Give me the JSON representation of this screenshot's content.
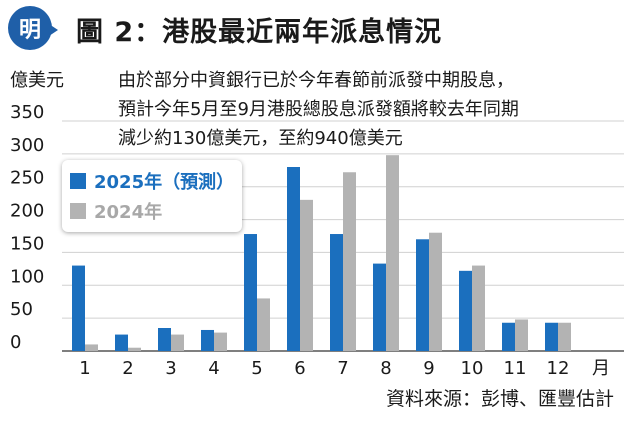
{
  "header": {
    "logo_char": "明",
    "title": "圖 2：港股最近兩年派息情況"
  },
  "ylabel": "億美元",
  "note": [
    "由於部分中資銀行已於今年春節前派發中期股息，",
    "預計今年5月至9月港股總股息派發額將較去年同期",
    "減少約130億美元，至約940億美元"
  ],
  "source": "資料來源：彭博、匯豐估計",
  "colors": {
    "brand": "#1f5fa8",
    "s2025": "#1b6fbe",
    "s2024": "#b3b3b3"
  },
  "chart_data": {
    "type": "bar",
    "categories": [
      "1",
      "2",
      "3",
      "4",
      "5",
      "6",
      "7",
      "8",
      "9",
      "10",
      "11",
      "12"
    ],
    "x_unit": "月",
    "ylim": [
      0,
      350
    ],
    "yticks": [
      0,
      50,
      100,
      150,
      200,
      250,
      300,
      350
    ],
    "ylabel": "億美元",
    "series": [
      {
        "name": "2025年（預測）",
        "values": [
          130,
          25,
          35,
          32,
          178,
          280,
          178,
          133,
          170,
          122,
          43,
          43
        ]
      },
      {
        "name": "2024年",
        "values": [
          10,
          5,
          25,
          28,
          80,
          230,
          272,
          298,
          180,
          130,
          48,
          43
        ]
      }
    ],
    "legend": "top-left"
  }
}
